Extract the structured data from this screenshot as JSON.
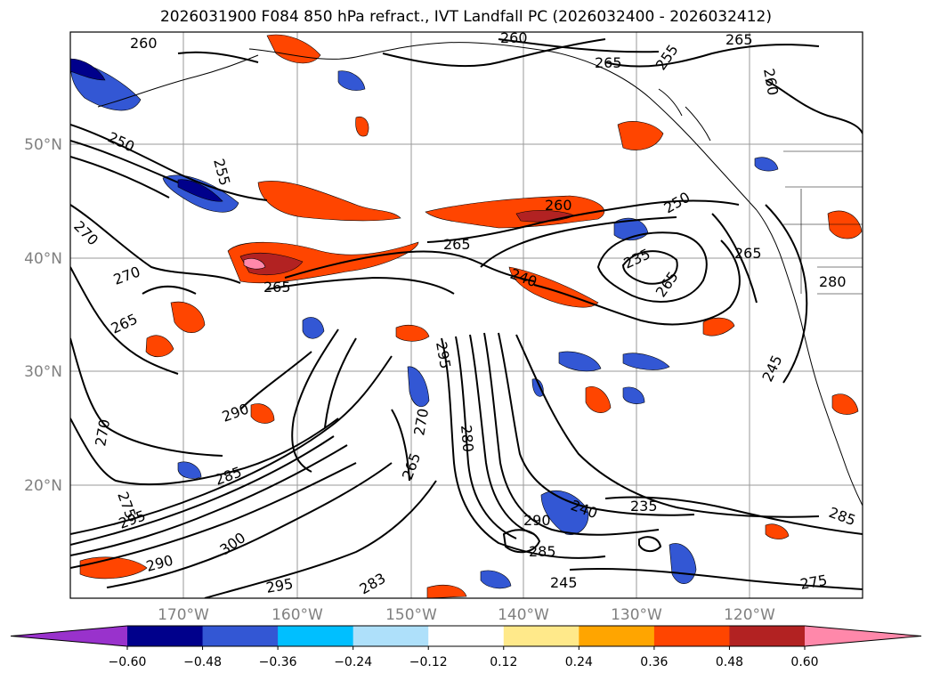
{
  "title": "2026031900 F084 850 hPa refract., IVT Landfall PC (2026032400 - 2026032412)",
  "axes": {
    "lat_labels": [
      "20°N",
      "30°N",
      "40°N",
      "50°N"
    ],
    "lon_labels": [
      "170°W",
      "160°W",
      "150°W",
      "140°W",
      "130°W",
      "120°W"
    ],
    "label_color": "#808080"
  },
  "colorbar": {
    "colors": [
      "#9932cc",
      "#00008b",
      "#3357d4",
      "#00bfff",
      "#aee0fa",
      "#ffffff",
      "#ffe98a",
      "#ffa500",
      "#ff4500",
      "#b22222",
      "#ff88aa"
    ],
    "ticks": [
      "−0.60",
      "−0.48",
      "−0.36",
      "−0.24",
      "−0.12",
      "0.12",
      "0.24",
      "0.36",
      "0.48",
      "0.60"
    ]
  },
  "contour_labels": [
    "260",
    "260",
    "265",
    "265",
    "260",
    "255",
    "250",
    "255",
    "270",
    "270",
    "265",
    "265",
    "265",
    "260",
    "240",
    "235",
    "265",
    "250",
    "265",
    "280",
    "295",
    "270",
    "280",
    "290",
    "265",
    "270",
    "285",
    "275",
    "295",
    "300",
    "290",
    "295",
    "283",
    "290",
    "285",
    "245",
    "240",
    "235",
    "245",
    "285",
    "275"
  ]
}
